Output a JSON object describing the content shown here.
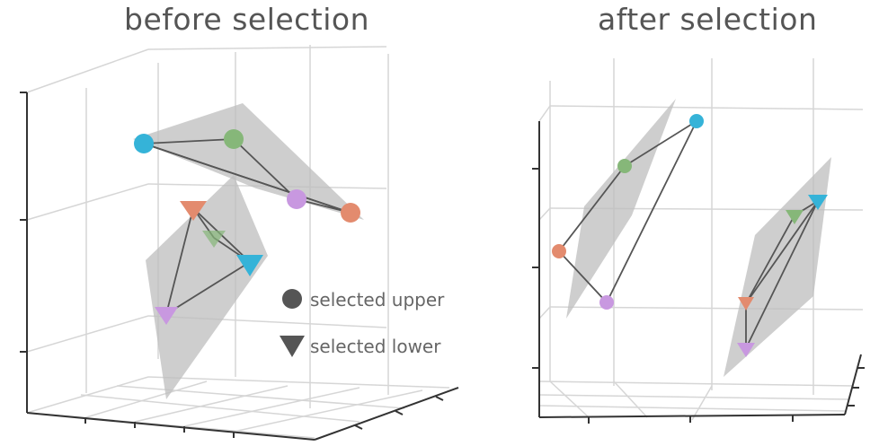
{
  "panels": {
    "left": {
      "title": "before selection"
    },
    "right": {
      "title": "after selection"
    }
  },
  "legend": {
    "upper": {
      "label": "selected upper",
      "marker": "circle"
    },
    "lower": {
      "label": "selected lower",
      "marker": "triangle-down"
    }
  },
  "colors": {
    "blue": "#35b3d8",
    "green": "#86b779",
    "purple": "#c898e0",
    "orange": "#e38b6e",
    "plane": "#bdbdbd",
    "grid": "#d6d6d6",
    "edge": "#555555",
    "legend_marker": "#555555"
  }
}
